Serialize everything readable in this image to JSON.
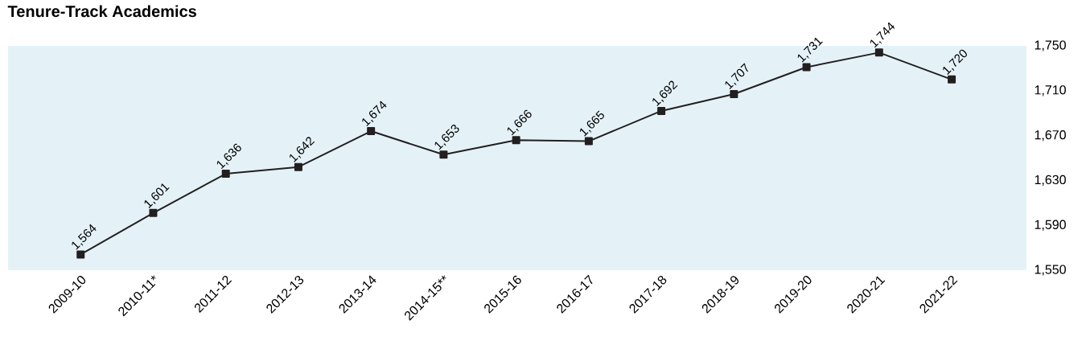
{
  "chart_data": {
    "type": "line",
    "title": "Tenure-Track Academics",
    "categories": [
      "2009-10",
      "2010-11*",
      "2011-12",
      "2012-13",
      "2013-14",
      "2014-15**",
      "2015-16",
      "2016-17",
      "2017-18",
      "2018-19",
      "2019-20",
      "2020-21",
      "2021-22"
    ],
    "values": [
      1564,
      1601,
      1636,
      1642,
      1674,
      1653,
      1666,
      1665,
      1692,
      1707,
      1731,
      1744,
      1720
    ],
    "value_labels": [
      "1,564",
      "1,601",
      "1,636",
      "1,642",
      "1,674",
      "1,653",
      "1,666",
      "1,665",
      "1,692",
      "1,707",
      "1,731",
      "1,744",
      "1,720"
    ],
    "color": "#231f20",
    "marker": "square",
    "line_style": "solid",
    "ylim": [
      1550,
      1750
    ],
    "yticks": [
      {
        "value": 1550,
        "label": "1,550"
      },
      {
        "value": 1590,
        "label": "1,590"
      },
      {
        "value": 1630,
        "label": "1,630"
      },
      {
        "value": 1670,
        "label": "1,670"
      },
      {
        "value": 1710,
        "label": "1,710"
      },
      {
        "value": 1750,
        "label": "1,750"
      }
    ],
    "grid": false
  }
}
